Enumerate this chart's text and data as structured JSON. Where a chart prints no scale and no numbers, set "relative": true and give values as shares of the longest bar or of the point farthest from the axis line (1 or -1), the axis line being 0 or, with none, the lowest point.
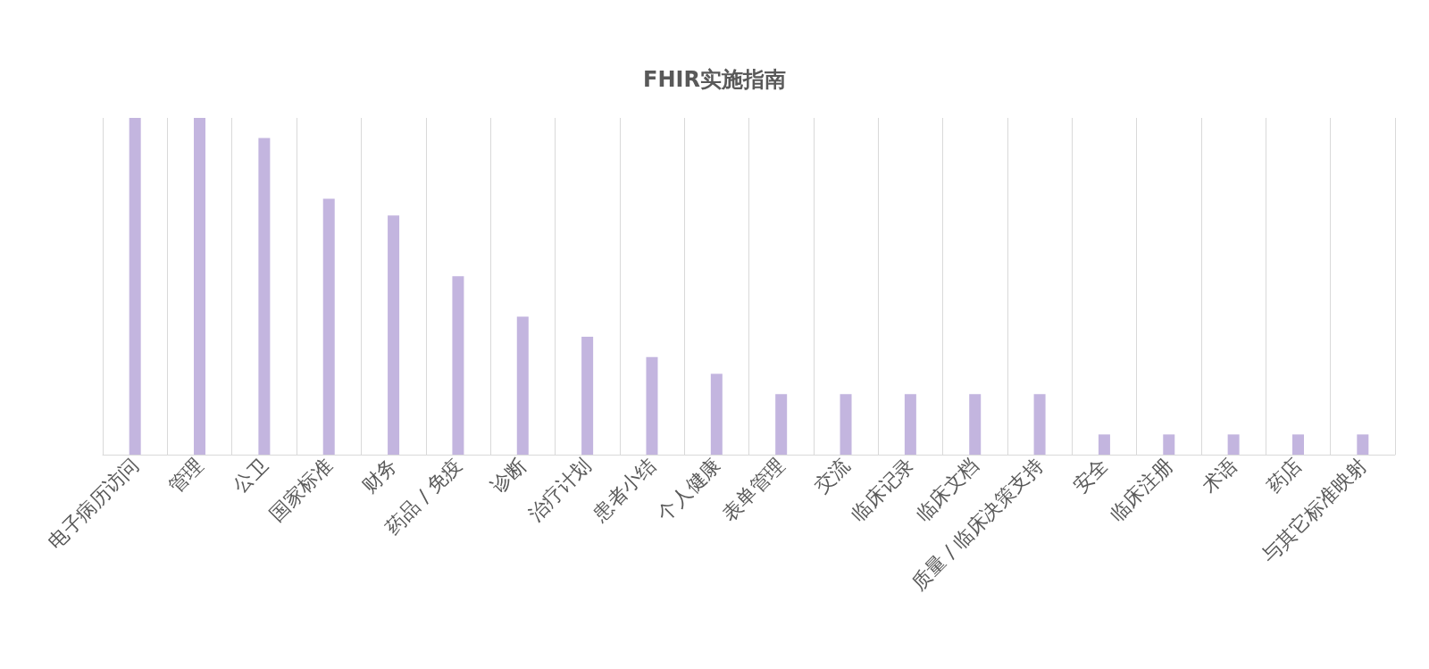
{
  "chart_data": {
    "type": "bar",
    "title": "FHIR实施指南",
    "relative": true,
    "grid": "x",
    "color": "#c3b5df",
    "categories": [
      "电子病历访问",
      "管理",
      "公卫",
      "国家标准",
      "财务",
      "药品 / 免疫",
      "诊断",
      "治疗计划",
      "患者小结",
      "个人健康",
      "表单管理",
      "交流",
      "临床记录",
      "临床文档",
      "质量 / 临床决策支持",
      "安全",
      "临床注册",
      "术语",
      "药店",
      "与其它标准映射"
    ],
    "values": [
      1,
      1,
      0.94,
      0.76,
      0.71,
      0.53,
      0.41,
      0.35,
      0.29,
      0.24,
      0.18,
      0.18,
      0.18,
      0.18,
      0.18,
      0.06,
      0.06,
      0.06,
      0.06,
      0.06
    ]
  }
}
